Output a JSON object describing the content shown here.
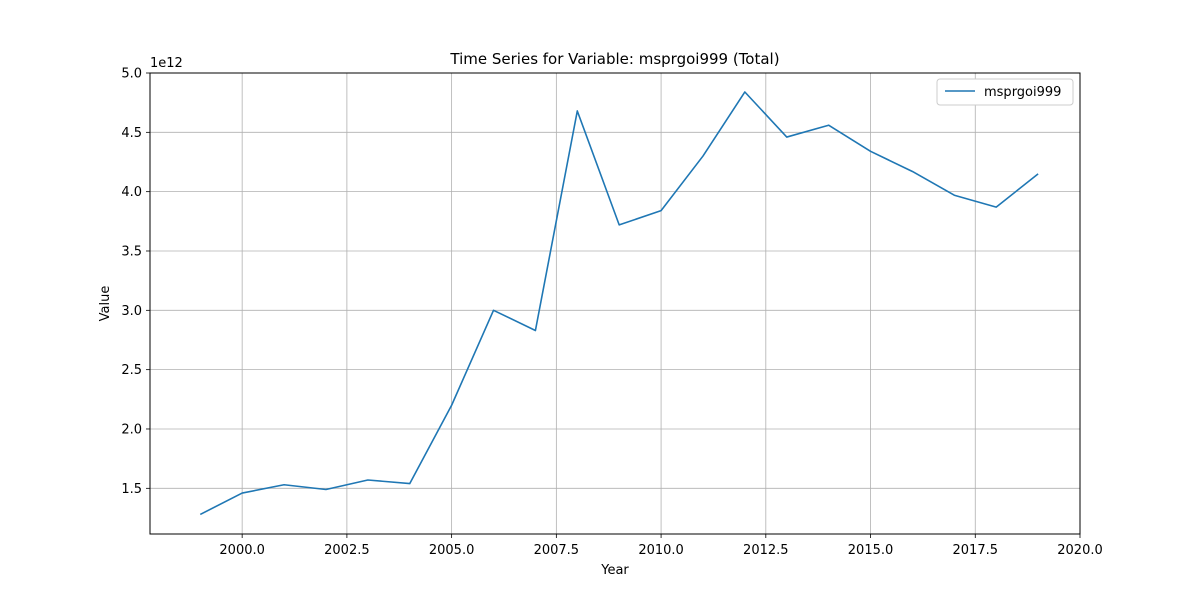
{
  "chart_data": {
    "type": "line",
    "title": "Time Series for Variable: msprgoi999 (Total)",
    "xlabel": "Year",
    "ylabel": "Value",
    "y_offset_label": "1e12",
    "xlim": [
      1997.8,
      2020.0
    ],
    "ylim": [
      1.115,
      5.0
    ],
    "x_ticks": [
      2000.0,
      2002.5,
      2005.0,
      2007.5,
      2010.0,
      2012.5,
      2015.0,
      2017.5,
      2020.0
    ],
    "x_tick_labels": [
      "2000.0",
      "2002.5",
      "2005.0",
      "2007.5",
      "2010.0",
      "2012.5",
      "2015.0",
      "2017.5",
      "2020.0"
    ],
    "y_ticks": [
      1.5,
      2.0,
      2.5,
      3.0,
      3.5,
      4.0,
      4.5,
      5.0
    ],
    "y_tick_labels": [
      "1.5",
      "2.0",
      "2.5",
      "3.0",
      "3.5",
      "4.0",
      "4.5",
      "5.0"
    ],
    "grid": true,
    "legend_position": "top-right",
    "series": [
      {
        "name": "msprgoi999",
        "color": "#1f77b4",
        "x": [
          1999,
          2000,
          2001,
          2002,
          2003,
          2004,
          2005,
          2006,
          2007,
          2008,
          2009,
          2010,
          2011,
          2012,
          2013,
          2014,
          2015,
          2016,
          2017,
          2018,
          2019
        ],
        "y": [
          1.28,
          1.46,
          1.53,
          1.49,
          1.57,
          1.54,
          2.2,
          3.0,
          2.83,
          4.68,
          3.72,
          3.84,
          4.3,
          4.84,
          4.46,
          4.56,
          4.34,
          4.17,
          3.97,
          3.87,
          4.15
        ]
      }
    ]
  }
}
